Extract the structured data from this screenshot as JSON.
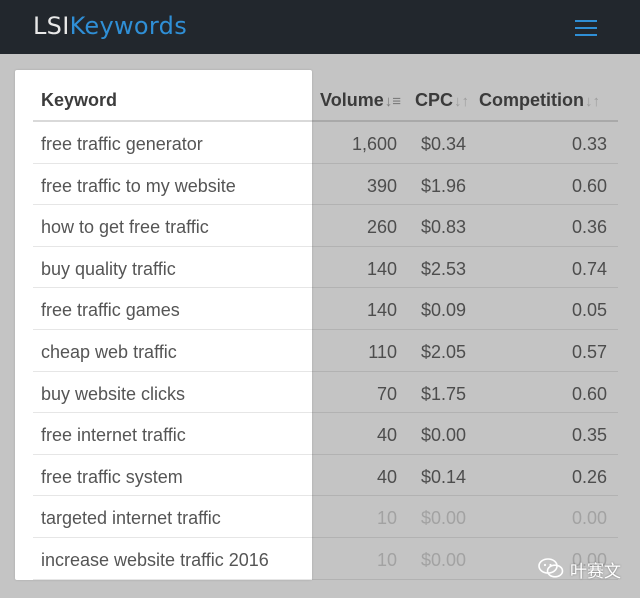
{
  "brand": {
    "part1": "LSI",
    "part2": "Keywords"
  },
  "table": {
    "headers": {
      "keyword": "Keyword",
      "volume": "Volume",
      "cpc": "CPC",
      "competition": "Competition"
    },
    "sort_icons": {
      "volume": "↓≡",
      "cpc": "↓↑",
      "competition": "↓↑"
    },
    "rows": [
      {
        "keyword": "free traffic generator",
        "volume": "1,600",
        "cpc": "$0.34",
        "competition": "0.33"
      },
      {
        "keyword": "free traffic to my website",
        "volume": "390",
        "cpc": "$1.96",
        "competition": "0.60"
      },
      {
        "keyword": "how to get free traffic",
        "volume": "260",
        "cpc": "$0.83",
        "competition": "0.36"
      },
      {
        "keyword": "buy quality traffic",
        "volume": "140",
        "cpc": "$2.53",
        "competition": "0.74"
      },
      {
        "keyword": "free traffic games",
        "volume": "140",
        "cpc": "$0.09",
        "competition": "0.05"
      },
      {
        "keyword": "cheap web traffic",
        "volume": "110",
        "cpc": "$2.05",
        "competition": "0.57"
      },
      {
        "keyword": "buy website clicks",
        "volume": "70",
        "cpc": "$1.75",
        "competition": "0.60"
      },
      {
        "keyword": "free internet traffic",
        "volume": "40",
        "cpc": "$0.00",
        "competition": "0.35"
      },
      {
        "keyword": "free traffic system",
        "volume": "40",
        "cpc": "$0.14",
        "competition": "0.26"
      },
      {
        "keyword": "targeted internet traffic",
        "volume": "10",
        "cpc": "$0.00",
        "competition": "0.00"
      },
      {
        "keyword": "increase website traffic 2016",
        "volume": "10",
        "cpc": "$0.00",
        "competition": "0.00"
      }
    ]
  },
  "watermark": {
    "text": "叶赛文",
    "icon": "wechat-icon"
  },
  "colors": {
    "navbar": "#22272d",
    "brand_accent": "#2f8fd6"
  }
}
